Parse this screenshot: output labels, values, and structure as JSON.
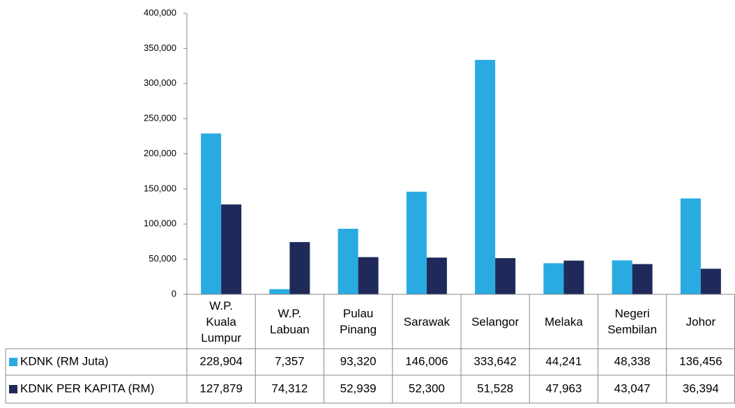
{
  "chart_data": {
    "type": "bar",
    "categories": [
      "W.P. Kuala Lumpur",
      "W.P. Labuan",
      "Pulau Pinang",
      "Sarawak",
      "Selangor",
      "Melaka",
      "Negeri Sembilan",
      "Johor"
    ],
    "series": [
      {
        "name": "KDNK (RM Juta)",
        "color": "#29abe2",
        "values": [
          228904,
          7357,
          93320,
          146006,
          333642,
          44241,
          48338,
          136456
        ],
        "value_labels": [
          "228,904",
          "7,357",
          "93,320",
          "146,006",
          "333,642",
          "44,241",
          "48,338",
          "136,456"
        ]
      },
      {
        "name": "KDNK PER KAPITA (RM)",
        "color": "#1f2a5a",
        "values": [
          127879,
          74312,
          52939,
          52300,
          51528,
          47963,
          43047,
          36394
        ],
        "value_labels": [
          "127,879",
          "74,312",
          "52,939",
          "52,300",
          "51,528",
          "47,963",
          "43,047",
          "36,394"
        ]
      }
    ],
    "ylim": [
      0,
      400000
    ],
    "yticks": [
      0,
      {
        "value": 50000,
        "label": "50,000"
      },
      {
        "value": 100000,
        "label": "100,000"
      },
      {
        "value": 150000,
        "label": "150,000"
      },
      {
        "value": 200000,
        "label": "200,000"
      },
      {
        "value": 250000,
        "label": "250,000"
      },
      {
        "value": 300000,
        "label": "300,000"
      },
      {
        "value": 350000,
        "label": "350,000"
      },
      {
        "value": 400000,
        "label": "400,000"
      }
    ]
  }
}
